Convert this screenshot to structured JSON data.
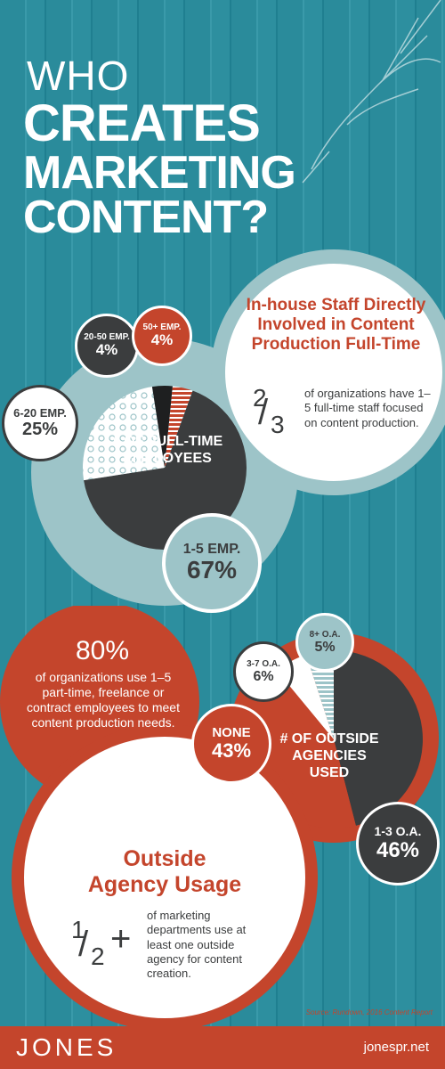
{
  "title": {
    "line1": "WHO",
    "line2": "CREATES",
    "line3": "MARKETING",
    "line4": "CONTENT?"
  },
  "colors": {
    "background": "#2a8b9b",
    "accent": "#c4452c",
    "dark": "#3b3d3e",
    "light_teal": "#9dc4c8",
    "white": "#ffffff"
  },
  "staff": {
    "heading": "In-house Staff Directly Involved in Content Production Full-Time",
    "fraction_num": "2",
    "fraction_den": "3",
    "fraction_text": "of organizations have 1–5 full-time staff focused on content production."
  },
  "agency": {
    "heading_line1": "Outside",
    "heading_line2": "Agency Usage",
    "fraction_num": "1",
    "fraction_den": "2",
    "fraction_plus": "+",
    "fraction_text": "of marketing departments use at least one outside agency for content creation."
  },
  "part_time": {
    "percent": "80%",
    "text": "of organizations use 1–5 part-time, freelance or contract employees to meet content production needs."
  },
  "source": "Source: Rundown, 2016 Content Report",
  "footer": {
    "logo": "JONES",
    "site": "jonespr.net"
  },
  "chart_data": [
    {
      "type": "pie",
      "title": "# OF FULL-TIME EMPLOYEES",
      "slices": [
        {
          "label": "1-5 EMP.",
          "value": 67,
          "display": "67%",
          "color": "#3b3d3e"
        },
        {
          "label": "6-20 EMP.",
          "value": 25,
          "display": "25%",
          "color": "#ffffff"
        },
        {
          "label": "20-50 EMP.",
          "value": 4,
          "display": "4%",
          "color": "#1e1f20"
        },
        {
          "label": "50+ EMP.",
          "value": 4,
          "display": "4%",
          "color": "#c4452c"
        }
      ]
    },
    {
      "type": "pie",
      "title": "# OF OUTSIDE AGENCIES USED",
      "slices": [
        {
          "label": "1-3 O.A.",
          "value": 46,
          "display": "46%",
          "color": "#3b3d3e"
        },
        {
          "label": "NONE",
          "value": 43,
          "display": "43%",
          "color": "#c4452c"
        },
        {
          "label": "3-7 O.A.",
          "value": 6,
          "display": "6%",
          "color": "#ffffff"
        },
        {
          "label": "8+ O.A.",
          "value": 5,
          "display": "5%",
          "color": "#9dc4c8"
        }
      ]
    }
  ]
}
